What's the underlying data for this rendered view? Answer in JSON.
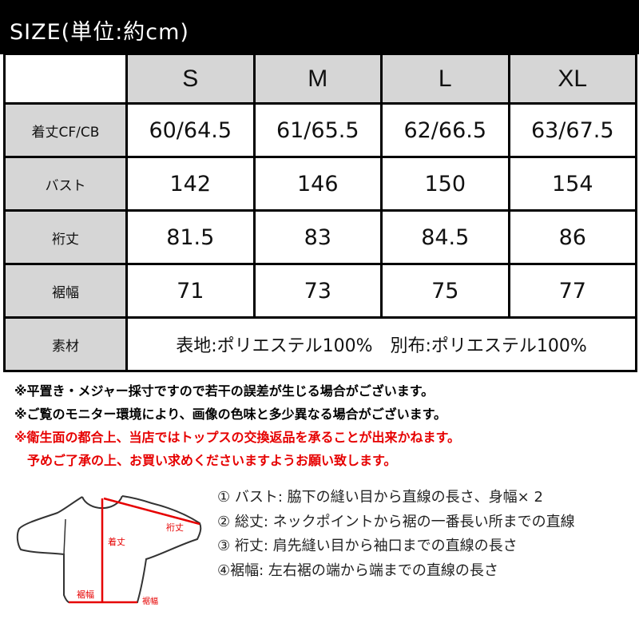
{
  "title": "SIZE(単位:約cm)",
  "sizes": [
    "S",
    "M",
    "L",
    "XL"
  ],
  "rows": [
    {
      "label": "着丈CF/CB",
      "values": [
        "60/64.5",
        "61/65.5",
        "62/66.5",
        "63/67.5"
      ]
    },
    {
      "label": "バスト",
      "values": [
        "142",
        "146",
        "150",
        "154"
      ]
    },
    {
      "label": "裄丈",
      "values": [
        "81.5",
        "83",
        "84.5",
        "86"
      ]
    },
    {
      "label": "裾幅",
      "values": [
        "71",
        "73",
        "75",
        "77"
      ]
    }
  ],
  "material": {
    "label": "素材",
    "value": "表地:ポリエステル100%　別布:ポリエステル100%"
  },
  "notes": [
    {
      "text": "※平置き・メジャー採寸ですので若干の誤差が生じる場合がございます。",
      "color": "#000000"
    },
    {
      "text": "※ご覧のモニター環境により、画像の色味と多少異なる場合がございます。",
      "color": "#000000"
    },
    {
      "text": "※衛生面の都合上、当店ではトップスの交換返品を承ることが出来かねます。",
      "color": "#e60000"
    },
    {
      "text": "　予めご了承の上、お買い求めくださいますようお願い致します。",
      "color": "#e60000"
    }
  ],
  "diagram": {
    "length_label": "着丈",
    "sleeve_label": "裄丈",
    "hem_label": "裾幅",
    "hem_label2": "裾幅"
  },
  "measurements": [
    "① バスト: 脇下の縫い目から直線の長さ、身幅× 2",
    "② 総丈: ネックポイントから裾の一番長い所までの直線",
    "③ 裄丈:  肩先縫い目から袖口までの直線の長さ",
    "④裾幅:   左右裾の端から端までの直線の長さ"
  ]
}
